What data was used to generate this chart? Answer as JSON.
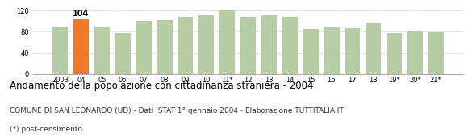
{
  "categories": [
    "2003",
    "04",
    "05",
    "06",
    "07",
    "08",
    "09",
    "10",
    "11*",
    "12",
    "13",
    "14",
    "15",
    "16",
    "17",
    "18",
    "19*",
    "20*",
    "21*"
  ],
  "values": [
    90,
    104,
    90,
    78,
    100,
    102,
    108,
    112,
    120,
    108,
    112,
    108,
    85,
    90,
    87,
    98,
    78,
    82,
    79
  ],
  "highlight_color": "#f07828",
  "normal_color": "#b5cca5",
  "highlight_label": "104",
  "highlight_index": 1,
  "ylim": [
    0,
    130
  ],
  "yticks": [
    0,
    40,
    80,
    120
  ],
  "title": "Andamento della popolazione con cittadinanza straniera - 2004",
  "subtitle": "COMUNE DI SAN LEONARDO (UD) - Dati ISTAT 1° gennaio 2004 - Elaborazione TUTTITALIA.IT",
  "footnote": "(*) post-censimento",
  "title_fontsize": 8.5,
  "subtitle_fontsize": 6.5,
  "footnote_fontsize": 6.5,
  "tick_fontsize": 6,
  "background_color": "#ffffff",
  "grid_color": "#cccccc"
}
